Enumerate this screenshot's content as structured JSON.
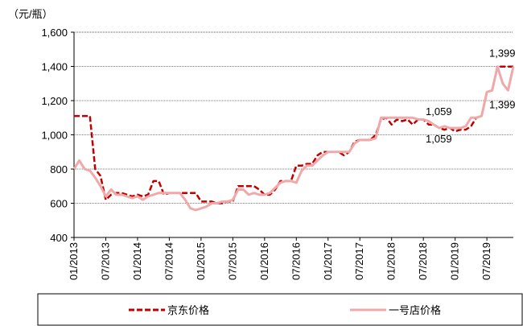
{
  "chart_data": {
    "type": "line",
    "y_axis_label": "（元/瓶）",
    "categories": [
      "01/2013",
      null,
      null,
      null,
      null,
      null,
      "07/2013",
      null,
      null,
      null,
      null,
      null,
      "01/2014",
      null,
      null,
      null,
      null,
      null,
      "07/2014",
      null,
      null,
      null,
      null,
      null,
      "01/2015",
      null,
      null,
      null,
      null,
      null,
      "07/2015",
      null,
      null,
      null,
      null,
      null,
      "01/2016",
      null,
      null,
      null,
      null,
      null,
      "07/2016",
      null,
      null,
      null,
      null,
      null,
      "01/2017",
      null,
      null,
      null,
      null,
      null,
      "07/2017",
      null,
      null,
      null,
      null,
      null,
      "01/2018",
      null,
      null,
      null,
      null,
      null,
      "07/2018",
      null,
      null,
      null,
      null,
      null,
      "01/2019",
      null,
      null,
      null,
      null,
      null,
      "07/2019",
      null,
      null,
      null,
      null,
      null
    ],
    "series": [
      {
        "name": "京东价格",
        "color": "#c00000",
        "style": "dashed",
        "values": [
          1110,
          1110,
          1110,
          1110,
          800,
          760,
          620,
          650,
          660,
          660,
          650,
          640,
          650,
          640,
          650,
          730,
          730,
          650,
          660,
          660,
          660,
          660,
          660,
          660,
          610,
          610,
          610,
          600,
          600,
          610,
          610,
          700,
          700,
          700,
          700,
          680,
          650,
          650,
          680,
          730,
          730,
          730,
          820,
          820,
          830,
          830,
          880,
          900,
          900,
          900,
          900,
          880,
          900,
          960,
          970,
          970,
          970,
          1000,
          1090,
          1100,
          1060,
          1090,
          1080,
          1090,
          1060,
          1090,
          1090,
          1060,
          1059,
          1040,
          1030,
          1040,
          1020,
          1030,
          1030,
          1050,
          1100,
          1110,
          1250,
          1260,
          1399,
          1399,
          1399,
          1399
        ],
        "value_labels": [
          null,
          null,
          null,
          null,
          null,
          null,
          null,
          null,
          null,
          null,
          null,
          null,
          null,
          null,
          null,
          null,
          null,
          null,
          null,
          null,
          null,
          null,
          null,
          null,
          null,
          null,
          null,
          null,
          null,
          null,
          null,
          null,
          null,
          null,
          null,
          null,
          null,
          null,
          null,
          null,
          null,
          null,
          null,
          null,
          null,
          null,
          null,
          null,
          null,
          null,
          null,
          null,
          null,
          null,
          null,
          null,
          null,
          null,
          null,
          null,
          null,
          null,
          null,
          null,
          null,
          null,
          null,
          null,
          "1,059",
          null,
          null,
          null,
          null,
          null,
          null,
          null,
          null,
          null,
          null,
          null,
          "1,399",
          null,
          null,
          null
        ]
      },
      {
        "name": "一号店价格",
        "color": "#f0a8a8",
        "style": "solid",
        "values": [
          800,
          850,
          800,
          790,
          750,
          700,
          640,
          680,
          650,
          650,
          640,
          630,
          640,
          620,
          640,
          650,
          660,
          660,
          660,
          660,
          660,
          620,
          570,
          560,
          570,
          580,
          600,
          600,
          610,
          610,
          620,
          680,
          680,
          650,
          660,
          650,
          650,
          660,
          690,
          720,
          730,
          730,
          720,
          790,
          820,
          820,
          850,
          880,
          900,
          900,
          900,
          900,
          900,
          950,
          970,
          970,
          970,
          980,
          1100,
          1100,
          1100,
          1100,
          1100,
          1100,
          1100,
          1090,
          1090,
          1080,
          1059,
          1040,
          1050,
          1040,
          1040,
          1040,
          1050,
          1100,
          1100,
          1110,
          1250,
          1260,
          1399,
          1300,
          1260,
          1399
        ],
        "value_labels": [
          null,
          null,
          null,
          null,
          null,
          null,
          null,
          null,
          null,
          null,
          null,
          null,
          null,
          null,
          null,
          null,
          null,
          null,
          null,
          null,
          null,
          null,
          null,
          null,
          null,
          null,
          null,
          null,
          null,
          null,
          null,
          null,
          null,
          null,
          null,
          null,
          null,
          null,
          null,
          null,
          null,
          null,
          null,
          null,
          null,
          null,
          null,
          null,
          null,
          null,
          null,
          null,
          null,
          null,
          null,
          null,
          null,
          null,
          null,
          null,
          null,
          null,
          null,
          null,
          null,
          null,
          null,
          null,
          "1,059",
          null,
          null,
          null,
          null,
          null,
          null,
          null,
          null,
          null,
          null,
          null,
          "1,399",
          null,
          null,
          null
        ]
      }
    ],
    "ylim": [
      400,
      1600
    ],
    "yticks": [
      400,
      600,
      800,
      {
        "value": 1000,
        "label": "1,000"
      },
      {
        "value": 1200,
        "label": "1,200"
      },
      {
        "value": 1400,
        "label": "1,400"
      },
      {
        "value": 1600,
        "label": "1,600"
      }
    ],
    "grid": true,
    "legend": "bottom"
  }
}
